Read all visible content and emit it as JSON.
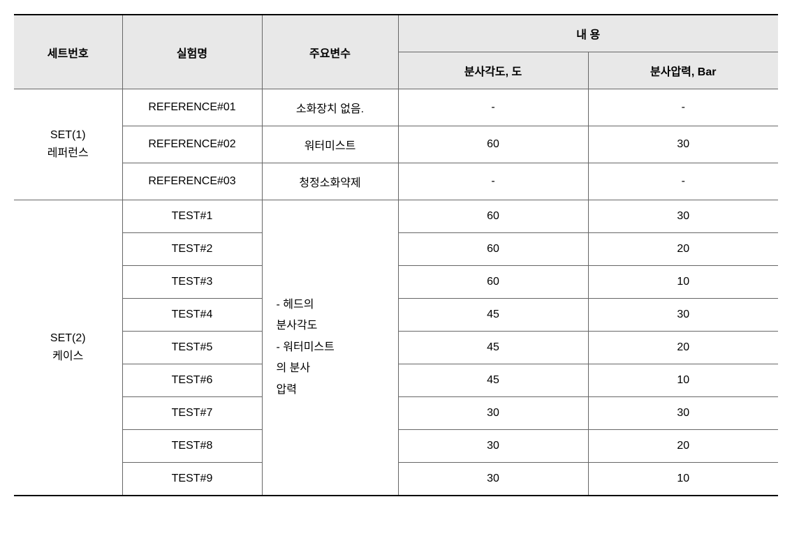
{
  "table": {
    "type": "table",
    "header": {
      "setno": "세트번호",
      "testname": "실험명",
      "mainvar": "주요변수",
      "content": "내 용",
      "angle": "분사각도, 도",
      "pressure": "분사압력, Bar"
    },
    "sets": [
      {
        "label_line1": "SET(1)",
        "label_line2": "레퍼런스",
        "rows": [
          {
            "testname": "REFERENCE#01",
            "mainvar": "소화장치 없음.",
            "angle": "-",
            "pressure": "-"
          },
          {
            "testname": "REFERENCE#02",
            "mainvar": "워터미스트",
            "angle": "60",
            "pressure": "30"
          },
          {
            "testname": "REFERENCE#03",
            "mainvar": "청정소화약제",
            "angle": "-",
            "pressure": "-"
          }
        ]
      },
      {
        "label_line1": "SET(2)",
        "label_line2": "케이스",
        "mainvar_lines": [
          "- 헤드의",
          "분사각도",
          "- 워터미스트",
          "의 분사",
          "압력"
        ],
        "rows": [
          {
            "testname": "TEST#1",
            "angle": "60",
            "pressure": "30"
          },
          {
            "testname": "TEST#2",
            "angle": "60",
            "pressure": "20"
          },
          {
            "testname": "TEST#3",
            "angle": "60",
            "pressure": "10"
          },
          {
            "testname": "TEST#4",
            "angle": "45",
            "pressure": "30"
          },
          {
            "testname": "TEST#5",
            "angle": "45",
            "pressure": "20"
          },
          {
            "testname": "TEST#6",
            "angle": "45",
            "pressure": "10"
          },
          {
            "testname": "TEST#7",
            "angle": "30",
            "pressure": "30"
          },
          {
            "testname": "TEST#8",
            "angle": "30",
            "pressure": "20"
          },
          {
            "testname": "TEST#9",
            "angle": "30",
            "pressure": "10"
          }
        ]
      }
    ],
    "styling": {
      "header_bg": "#e8e8e8",
      "cell_bg": "#ffffff",
      "border_color": "#666666",
      "outer_border_color": "#000000",
      "font_size": 16,
      "text_color": "#000000"
    }
  }
}
